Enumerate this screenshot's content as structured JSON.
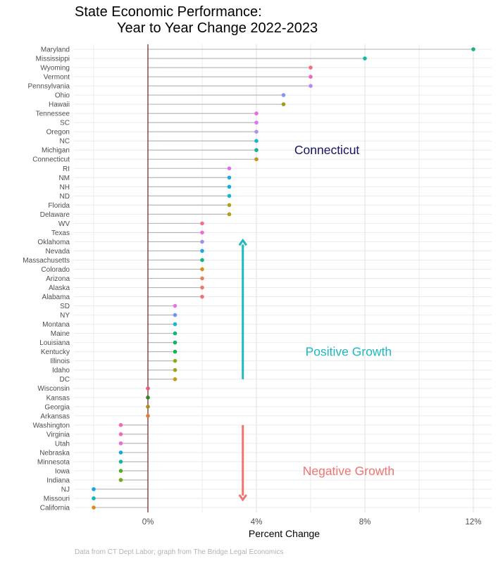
{
  "chart_data": {
    "type": "lollipop",
    "title_line1": "State Economic Performance:",
    "title_line2": "Year to Year Change 2022-2023",
    "xlabel": "Percent Change",
    "ylabel": "",
    "xlim": [
      -2.7,
      12.6
    ],
    "x_ticks": [
      0,
      4,
      8,
      12
    ],
    "x_tick_labels": [
      "0%",
      "4%",
      "8%",
      "12%"
    ],
    "x_minor_ticks": [
      -2,
      2,
      6,
      10
    ],
    "grid": true,
    "reference_line": {
      "x": 0,
      "color": "#7a1f1f"
    },
    "caption": "Data from CT Dept Labor; graph from The Bridge Legal Economics",
    "points": [
      {
        "state": "Maryland",
        "value": 12,
        "color": "#19b56f"
      },
      {
        "state": "Mississippi",
        "value": 8,
        "color": "#14b8a6"
      },
      {
        "state": "Wyoming",
        "value": 6,
        "color": "#f0707e"
      },
      {
        "state": "Vermont",
        "value": 6,
        "color": "#f067b8"
      },
      {
        "state": "Pennsylvania",
        "value": 6,
        "color": "#bb86f0"
      },
      {
        "state": "Ohio",
        "value": 5,
        "color": "#8b93ef"
      },
      {
        "state": "Hawaii",
        "value": 5,
        "color": "#a39a1c"
      },
      {
        "state": "Tennessee",
        "value": 4,
        "color": "#ea6ae0"
      },
      {
        "state": "SC",
        "value": 4,
        "color": "#dc77ef"
      },
      {
        "state": "Oregon",
        "value": 4,
        "color": "#b98bef"
      },
      {
        "state": "NC",
        "value": 4,
        "color": "#1cb4d4"
      },
      {
        "state": "Michigan",
        "value": 4,
        "color": "#13b493"
      },
      {
        "state": "Connecticut",
        "value": 4,
        "color": "#c5951c"
      },
      {
        "state": "RI",
        "value": 3,
        "color": "#dd71ee"
      },
      {
        "state": "NM",
        "value": 3,
        "color": "#21a6e8"
      },
      {
        "state": "NH",
        "value": 3,
        "color": "#12addf"
      },
      {
        "state": "ND",
        "value": 3,
        "color": "#15b1d8"
      },
      {
        "state": "Florida",
        "value": 3,
        "color": "#b49f1c"
      },
      {
        "state": "Delaware",
        "value": 3,
        "color": "#b59b1f"
      },
      {
        "state": "WV",
        "value": 2,
        "color": "#f0708c"
      },
      {
        "state": "Texas",
        "value": 2,
        "color": "#ea70d8"
      },
      {
        "state": "Oklahoma",
        "value": 2,
        "color": "#a28ded"
      },
      {
        "state": "Nevada",
        "value": 2,
        "color": "#1aa9e6"
      },
      {
        "state": "Massachusetts",
        "value": 2,
        "color": "#14b685"
      },
      {
        "state": "Colorado",
        "value": 2,
        "color": "#cf921c"
      },
      {
        "state": "Arizona",
        "value": 2,
        "color": "#e8825a"
      },
      {
        "state": "Alaska",
        "value": 2,
        "color": "#ec7a6a"
      },
      {
        "state": "Alabama",
        "value": 2,
        "color": "#f07373"
      },
      {
        "state": "SD",
        "value": 1,
        "color": "#e673e6"
      },
      {
        "state": "NY",
        "value": 1,
        "color": "#6d97ee"
      },
      {
        "state": "Montana",
        "value": 1,
        "color": "#1ab6ce"
      },
      {
        "state": "Maine",
        "value": 1,
        "color": "#13b46d"
      },
      {
        "state": "Louisiana",
        "value": 1,
        "color": "#0fb45a"
      },
      {
        "state": "Kentucky",
        "value": 1,
        "color": "#13b44f"
      },
      {
        "state": "Illinois",
        "value": 1,
        "color": "#8aaa1c"
      },
      {
        "state": "Idaho",
        "value": 1,
        "color": "#9aa41c"
      },
      {
        "state": "DC",
        "value": 1,
        "color": "#c99a1c"
      },
      {
        "state": "Wisconsin",
        "value": 0,
        "color": "#ea5a7c"
      },
      {
        "state": "Kansas",
        "value": 0,
        "color": "#2f8a1c"
      },
      {
        "state": "Georgia",
        "value": 0,
        "color": "#a98e1c"
      },
      {
        "state": "Arkansas",
        "value": 0,
        "color": "#e07a3a"
      },
      {
        "state": "Washington",
        "value": -1,
        "color": "#f06ab4"
      },
      {
        "state": "Virginia",
        "value": -1,
        "color": "#f06ac0"
      },
      {
        "state": "Utah",
        "value": -1,
        "color": "#ee6ccb"
      },
      {
        "state": "Nebraska",
        "value": -1,
        "color": "#17a8e0"
      },
      {
        "state": "Minnesota",
        "value": -1,
        "color": "#13b4a6"
      },
      {
        "state": "Iowa",
        "value": -1,
        "color": "#4cae1c"
      },
      {
        "state": "Indiana",
        "value": -1,
        "color": "#6aac1c"
      },
      {
        "state": "NJ",
        "value": -2,
        "color": "#1aa3ea"
      },
      {
        "state": "Missouri",
        "value": -2,
        "color": "#13b3bd"
      },
      {
        "state": "California",
        "value": -2,
        "color": "#d5901c"
      }
    ],
    "annotations": [
      {
        "text": "Connecticut",
        "x": 6.6,
        "row": "Michigan",
        "color": "#141466"
      },
      {
        "text": "Positive Growth",
        "x": 7.4,
        "row": "Kentucky",
        "color": "#1fb8bf"
      },
      {
        "text": "Negative Growth",
        "x": 7.4,
        "row": "Iowa",
        "color": "#ef7470"
      }
    ],
    "arrows": [
      {
        "name": "positive-arrow",
        "x": 3.5,
        "from_row": "DC",
        "to_row": "Oklahoma",
        "color": "#1fb8bf"
      },
      {
        "name": "negative-arrow",
        "x": 3.5,
        "from_row": "Washington",
        "to_row": "Missouri",
        "color": "#ef7470"
      }
    ]
  }
}
